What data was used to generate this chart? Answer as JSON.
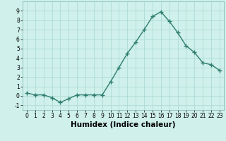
{
  "x": [
    0,
    1,
    2,
    3,
    4,
    5,
    6,
    7,
    8,
    9,
    10,
    11,
    12,
    13,
    14,
    15,
    16,
    17,
    18,
    19,
    20,
    21,
    22,
    23
  ],
  "y": [
    0.3,
    0.1,
    0.1,
    -0.2,
    -0.7,
    -0.3,
    0.1,
    0.1,
    0.1,
    0.1,
    1.5,
    3.0,
    4.5,
    5.7,
    7.0,
    8.4,
    8.9,
    7.9,
    6.7,
    5.3,
    4.6,
    3.5,
    3.3,
    2.7
  ],
  "line_color": "#2e7d6e",
  "marker": "+",
  "markersize": 4,
  "markeredgewidth": 1.0,
  "linewidth": 1.0,
  "xlabel": "Humidex (Indice chaleur)",
  "xlim": [
    -0.5,
    23.5
  ],
  "ylim": [
    -1.5,
    10.0
  ],
  "yticks": [
    -1,
    0,
    1,
    2,
    3,
    4,
    5,
    6,
    7,
    8,
    9
  ],
  "xticks": [
    0,
    1,
    2,
    3,
    4,
    5,
    6,
    7,
    8,
    9,
    10,
    11,
    12,
    13,
    14,
    15,
    16,
    17,
    18,
    19,
    20,
    21,
    22,
    23
  ],
  "bg_color": "#cff0eb",
  "grid_color": "#a8d8d0",
  "tick_labelsize": 5.5,
  "xlabel_fontsize": 7.5
}
